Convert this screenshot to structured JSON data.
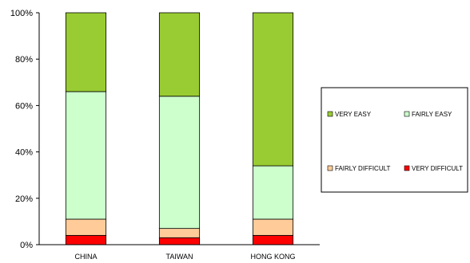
{
  "chart_data": {
    "type": "bar",
    "stacked": true,
    "percent": true,
    "categories": [
      "CHINA",
      "TAIWAN",
      "HONG KONG"
    ],
    "series": [
      {
        "name": "VERY DIFFICULT",
        "color": "#ff0000",
        "values": [
          4,
          3,
          4
        ]
      },
      {
        "name": "FAIRLY DIFFICULT",
        "color": "#ffcc99",
        "values": [
          7,
          4,
          7
        ]
      },
      {
        "name": "FAIRLY EASY",
        "color": "#ccffcc",
        "values": [
          55,
          57,
          23
        ]
      },
      {
        "name": "VERY EASY",
        "color": "#99cc33",
        "values": [
          34,
          36,
          66
        ]
      }
    ],
    "y_ticks": [
      "0%",
      "20%",
      "40%",
      "60%",
      "80%",
      "100%"
    ],
    "ylim": [
      0,
      100
    ],
    "legend_order": [
      "VERY EASY",
      "FAIRLY EASY",
      "FAIRLY DIFFICULT",
      "VERY DIFFICULT"
    ],
    "legend_position": "right",
    "grid": false
  }
}
